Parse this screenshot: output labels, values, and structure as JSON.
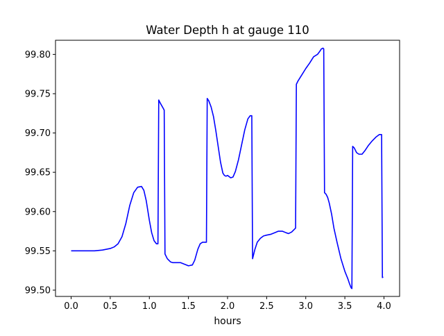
{
  "chart_data": {
    "type": "line",
    "title": "Water Depth h at gauge 110",
    "xlabel": "hours",
    "ylabel": "",
    "xlim": [
      -0.2,
      4.2
    ],
    "ylim": [
      99.492,
      99.818
    ],
    "xticks": [
      0.0,
      0.5,
      1.0,
      1.5,
      2.0,
      2.5,
      3.0,
      3.5,
      4.0
    ],
    "xtick_labels": [
      "0.0",
      "0.5",
      "1.0",
      "1.5",
      "2.0",
      "2.5",
      "3.0",
      "3.5",
      "4.0"
    ],
    "yticks": [
      99.5,
      99.55,
      99.6,
      99.65,
      99.7,
      99.75,
      99.8
    ],
    "ytick_labels": [
      "99.50",
      "99.55",
      "99.60",
      "99.65",
      "99.70",
      "99.75",
      "99.80"
    ],
    "grid": false,
    "series": [
      {
        "color": "#0000ff",
        "x": [
          0.0,
          0.1,
          0.2,
          0.3,
          0.4,
          0.5,
          0.55,
          0.6,
          0.65,
          0.7,
          0.75,
          0.8,
          0.85,
          0.9,
          0.93,
          0.96,
          1.0,
          1.03,
          1.06,
          1.09,
          1.11,
          1.12,
          1.14,
          1.18,
          1.19,
          1.2,
          1.23,
          1.27,
          1.3,
          1.35,
          1.4,
          1.45,
          1.5,
          1.55,
          1.58,
          1.62,
          1.65,
          1.68,
          1.72,
          1.73,
          1.74,
          1.76,
          1.79,
          1.82,
          1.85,
          1.88,
          1.91,
          1.94,
          1.96,
          1.98,
          2.0,
          2.04,
          2.07,
          2.1,
          2.14,
          2.18,
          2.22,
          2.26,
          2.29,
          2.31,
          2.32,
          2.35,
          2.38,
          2.42,
          2.46,
          2.5,
          2.55,
          2.6,
          2.65,
          2.7,
          2.75,
          2.78,
          2.82,
          2.85,
          2.87,
          2.88,
          2.9,
          2.95,
          3.0,
          3.05,
          3.1,
          3.15,
          3.18,
          3.2,
          3.22,
          3.23,
          3.24,
          3.26,
          3.28,
          3.3,
          3.33,
          3.36,
          3.4,
          3.45,
          3.5,
          3.54,
          3.56,
          3.58,
          3.59,
          3.6,
          3.62,
          3.65,
          3.68,
          3.72,
          3.76,
          3.8,
          3.85,
          3.9,
          3.94,
          3.96,
          3.97,
          3.98,
          3.99
        ],
        "y": [
          99.55,
          99.55,
          99.55,
          99.55,
          99.551,
          99.553,
          99.555,
          99.559,
          99.568,
          99.585,
          99.608,
          99.624,
          99.631,
          99.632,
          99.627,
          99.614,
          99.589,
          99.573,
          99.563,
          99.559,
          99.559,
          99.742,
          99.738,
          99.731,
          99.729,
          99.546,
          99.54,
          99.536,
          99.535,
          99.535,
          99.535,
          99.533,
          99.531,
          99.532,
          99.538,
          99.552,
          99.559,
          99.561,
          99.561,
          99.561,
          99.744,
          99.741,
          99.733,
          99.721,
          99.703,
          99.683,
          99.663,
          99.649,
          99.646,
          99.645,
          99.646,
          99.643,
          99.644,
          99.651,
          99.666,
          99.685,
          99.704,
          99.718,
          99.722,
          99.722,
          99.54,
          99.552,
          99.561,
          99.566,
          99.569,
          99.57,
          99.571,
          99.573,
          99.575,
          99.575,
          99.573,
          99.572,
          99.574,
          99.577,
          99.579,
          99.762,
          99.766,
          99.774,
          99.782,
          99.789,
          99.797,
          99.8,
          99.804,
          99.807,
          99.808,
          99.807,
          99.624,
          99.622,
          99.618,
          99.611,
          99.597,
          99.579,
          99.561,
          99.54,
          99.524,
          99.514,
          99.508,
          99.503,
          99.502,
          99.683,
          99.681,
          99.675,
          99.673,
          99.673,
          99.678,
          99.684,
          99.69,
          99.695,
          99.698,
          99.698,
          99.698,
          99.516,
          99.517
        ]
      }
    ]
  }
}
